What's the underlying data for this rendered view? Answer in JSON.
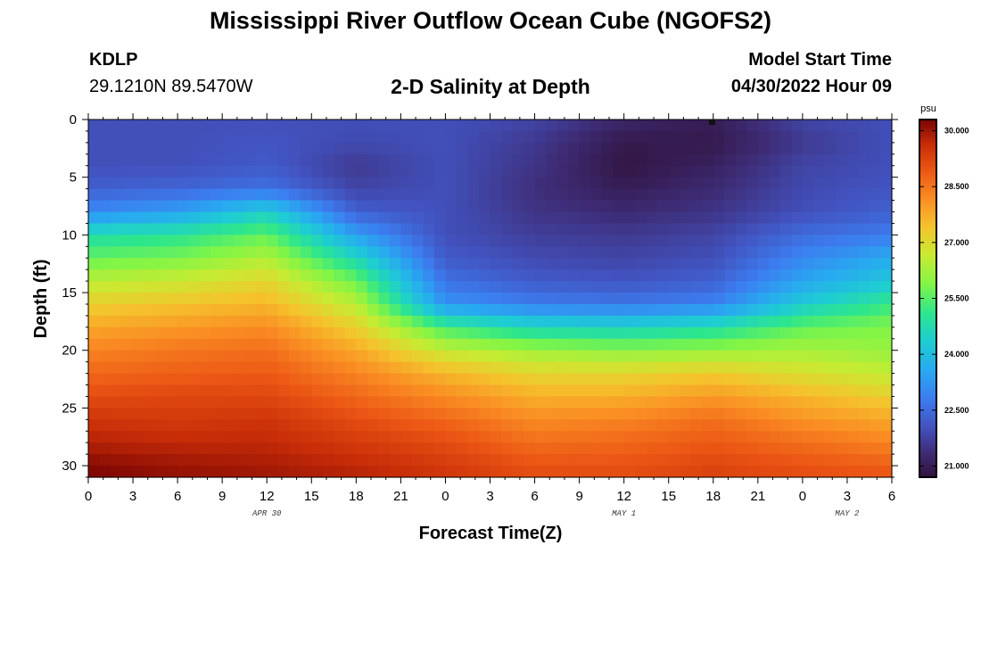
{
  "header": {
    "title_top": "Mississippi River Outflow Ocean Cube (NGOFS2)",
    "station_id": "KDLP",
    "station_coords": "29.1210N  89.5470W",
    "subtitle": "2-D Salinity at Depth",
    "model_start_label": "Model Start Time",
    "model_start_value": "04/30/2022 Hour 09",
    "title_bottom": "Mississippi River Outflow Ocean Cube (NGOFS2)"
  },
  "chart_data": {
    "type": "heatmap",
    "title": "2-D Salinity at Depth",
    "xlabel": "Forecast Time(Z)",
    "ylabel": "Depth (ft)",
    "x_tick_labels": [
      "0",
      "3",
      "6",
      "9",
      "12",
      "15",
      "18",
      "21",
      "0",
      "3",
      "6",
      "9",
      "12",
      "15",
      "18",
      "21",
      "0",
      "3",
      "6"
    ],
    "x_range_hours": [
      0,
      54
    ],
    "date_labels": [
      {
        "label": "APR 30",
        "hour": 12
      },
      {
        "label": "MAY 1",
        "hour": 36
      },
      {
        "label": "MAY 2",
        "hour": 51
      }
    ],
    "y_ticks": [
      0,
      5,
      10,
      15,
      20,
      25,
      30
    ],
    "y_range_ft": [
      0,
      31
    ],
    "y_inverted": true,
    "colorbar": {
      "unit": "psu",
      "ticks": [
        "30.000",
        "28.500",
        "27.000",
        "25.500",
        "24.000",
        "22.500",
        "21.000"
      ],
      "tick_values": [
        30.0,
        28.5,
        27.0,
        25.5,
        24.0,
        22.5,
        21.0
      ],
      "range": [
        20.7,
        30.3
      ]
    },
    "depth_levels_ft": [
      0,
      2,
      4,
      6,
      8,
      10,
      12,
      14,
      16,
      18,
      20,
      22,
      24,
      26,
      28,
      30,
      31
    ],
    "time_hours": [
      0,
      6,
      12,
      18,
      24,
      30,
      36,
      42,
      48,
      54
    ],
    "salinity_psu": [
      [
        22.0,
        22.0,
        22.0,
        22.0,
        22.0,
        21.8,
        21.2,
        21.0,
        21.8,
        22.0
      ],
      [
        22.0,
        22.0,
        22.1,
        21.9,
        22.0,
        21.6,
        20.9,
        20.9,
        21.6,
        22.0
      ],
      [
        22.0,
        22.0,
        22.2,
        21.6,
        22.0,
        21.5,
        20.8,
        21.1,
        21.8,
        22.0
      ],
      [
        22.3,
        22.4,
        22.6,
        21.8,
        22.0,
        21.4,
        21.0,
        21.3,
        21.9,
        22.1
      ],
      [
        23.0,
        23.4,
        24.4,
        22.3,
        22.0,
        21.5,
        21.3,
        21.5,
        22.0,
        22.3
      ],
      [
        24.8,
        25.0,
        25.6,
        23.4,
        22.0,
        21.7,
        21.6,
        21.8,
        22.5,
        22.8
      ],
      [
        25.6,
        25.8,
        26.4,
        24.6,
        22.2,
        21.9,
        21.8,
        22.0,
        23.0,
        23.6
      ],
      [
        26.5,
        26.7,
        27.1,
        25.7,
        22.6,
        22.2,
        22.1,
        22.3,
        23.5,
        24.2
      ],
      [
        27.2,
        27.4,
        27.6,
        26.5,
        23.2,
        22.8,
        22.7,
        22.9,
        24.3,
        25.2
      ],
      [
        27.8,
        28.0,
        28.2,
        27.2,
        25.3,
        24.6,
        24.5,
        24.8,
        25.6,
        25.9
      ],
      [
        28.3,
        28.5,
        28.6,
        27.8,
        26.6,
        26.2,
        26.0,
        26.1,
        26.3,
        26.1
      ],
      [
        28.7,
        28.8,
        28.9,
        28.3,
        27.6,
        27.1,
        27.1,
        27.3,
        26.9,
        26.6
      ],
      [
        29.1,
        29.2,
        29.2,
        28.7,
        28.2,
        27.7,
        27.7,
        28.0,
        27.6,
        27.2
      ],
      [
        29.5,
        29.4,
        29.5,
        29.1,
        28.7,
        28.2,
        28.3,
        28.6,
        28.1,
        27.8
      ],
      [
        29.8,
        29.7,
        29.7,
        29.4,
        29.1,
        28.6,
        28.7,
        28.9,
        28.6,
        28.3
      ],
      [
        30.2,
        30.0,
        29.9,
        29.7,
        29.4,
        29.0,
        29.0,
        29.2,
        29.0,
        28.8
      ],
      [
        30.3,
        30.1,
        30.0,
        29.8,
        29.5,
        29.1,
        29.1,
        29.3,
        29.1,
        29.0
      ]
    ]
  }
}
